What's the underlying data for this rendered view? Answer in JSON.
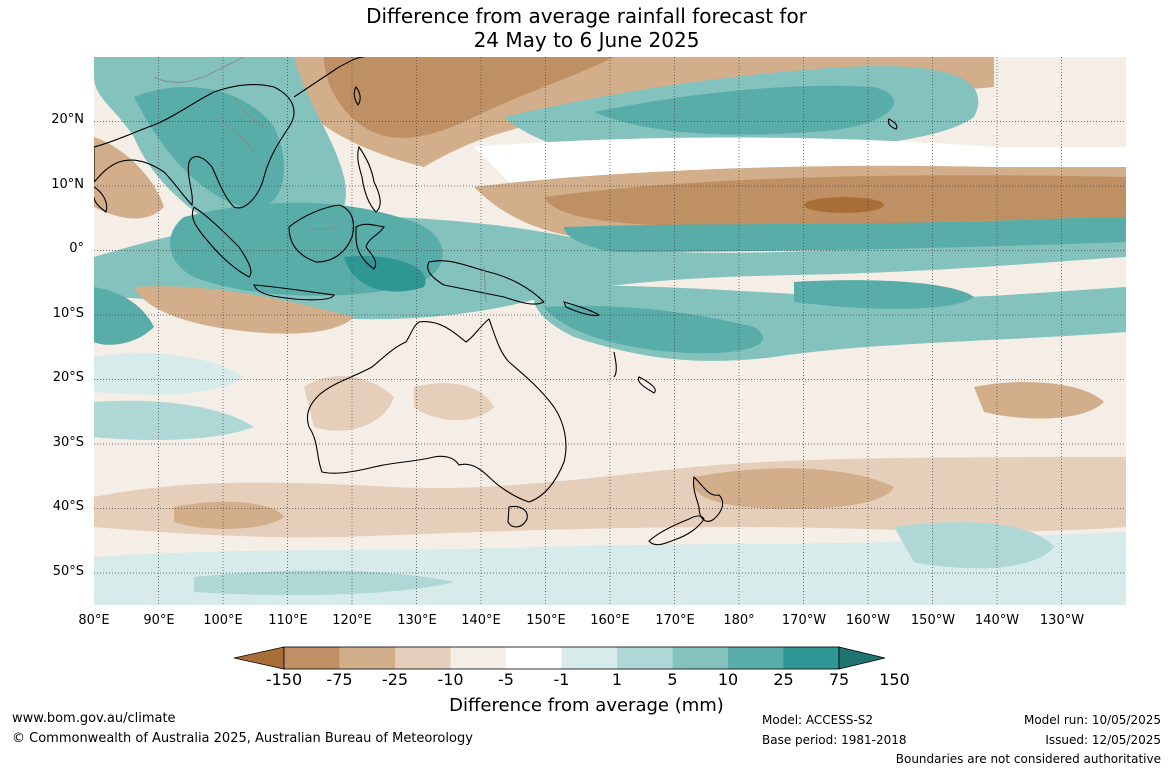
{
  "title": {
    "line1": "Difference from average rainfall forecast for",
    "line2": "24 May to 6 June 2025"
  },
  "map": {
    "lat_labels": [
      "20°N",
      "10°N",
      "0°",
      "10°S",
      "20°S",
      "30°S",
      "40°S",
      "50°S"
    ],
    "lon_labels": [
      "80°E",
      "90°E",
      "100°E",
      "110°E",
      "120°E",
      "130°E",
      "140°E",
      "150°E",
      "160°E",
      "170°E",
      "180°",
      "170°W",
      "160°W",
      "150°W",
      "140°W",
      "130°W"
    ],
    "extent_lon": [
      80,
      240
    ],
    "extent_lat": [
      -55,
      30
    ]
  },
  "colorbar": {
    "title": "Difference from average (mm)",
    "ticks": [
      "-150",
      "-75",
      "-25",
      "-10",
      "-5",
      "-1",
      "1",
      "5",
      "10",
      "25",
      "75",
      "150"
    ],
    "colors": [
      "#a86e38",
      "#bf9063",
      "#d2ae8a",
      "#e6cfba",
      "#f4eee7",
      "#ffffff",
      "#d6ebea",
      "#aed7d5",
      "#84c2be",
      "#58ada9",
      "#2f9793",
      "#1f7370"
    ]
  },
  "footer": {
    "website": "www.bom.gov.au/climate",
    "copyright": "© Commonwealth of Australia 2025, Australian Bureau of Meteorology",
    "model": "Model: ACCESS-S2",
    "base_period": "Base period: 1981-2018",
    "model_run": "Model run: 10/05/2025",
    "issued": "Issued: 12/05/2025",
    "boundaries": "Boundaries are not considered authoritative"
  }
}
